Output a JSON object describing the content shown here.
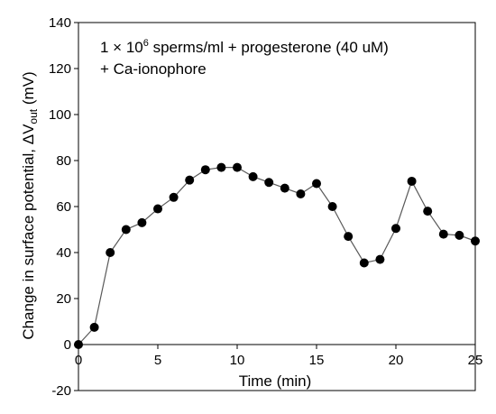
{
  "chart_data": {
    "type": "line",
    "title": "",
    "annotation_line1_pre": "1 × 10",
    "annotation_line1_sup": "6",
    "annotation_line1_post": " sperms/ml + progesterone (40 uM)",
    "annotation_line2": "+ Ca-ionophore",
    "xlabel": "Time (min)",
    "ylabel_pre": "Change in surface potential, ",
    "ylabel_delta": "ΔV",
    "ylabel_sub": "out",
    "ylabel_unit": " (mV)",
    "xlim": [
      0,
      25
    ],
    "ylim": [
      -20,
      140
    ],
    "xticks": [
      0,
      5,
      10,
      15,
      20,
      25
    ],
    "yticks": [
      -20,
      0,
      20,
      40,
      60,
      80,
      100,
      120,
      140
    ],
    "grid": false,
    "marker": "filled-circle",
    "series_color": "#000000",
    "line_color": "#595959",
    "series": [
      {
        "x": [
          0,
          1,
          2,
          3,
          4,
          5,
          6,
          7,
          8,
          9,
          10,
          11,
          12,
          13,
          14,
          15,
          16,
          17,
          18,
          19,
          20,
          21,
          22,
          23,
          24,
          25
        ],
        "y": [
          0,
          7.5,
          40,
          50,
          53,
          59,
          64,
          71.5,
          76,
          77,
          77,
          73,
          70.5,
          68,
          65.5,
          70,
          60,
          47,
          35.5,
          37,
          50.5,
          71,
          58,
          48,
          47.5,
          45
        ]
      }
    ]
  }
}
